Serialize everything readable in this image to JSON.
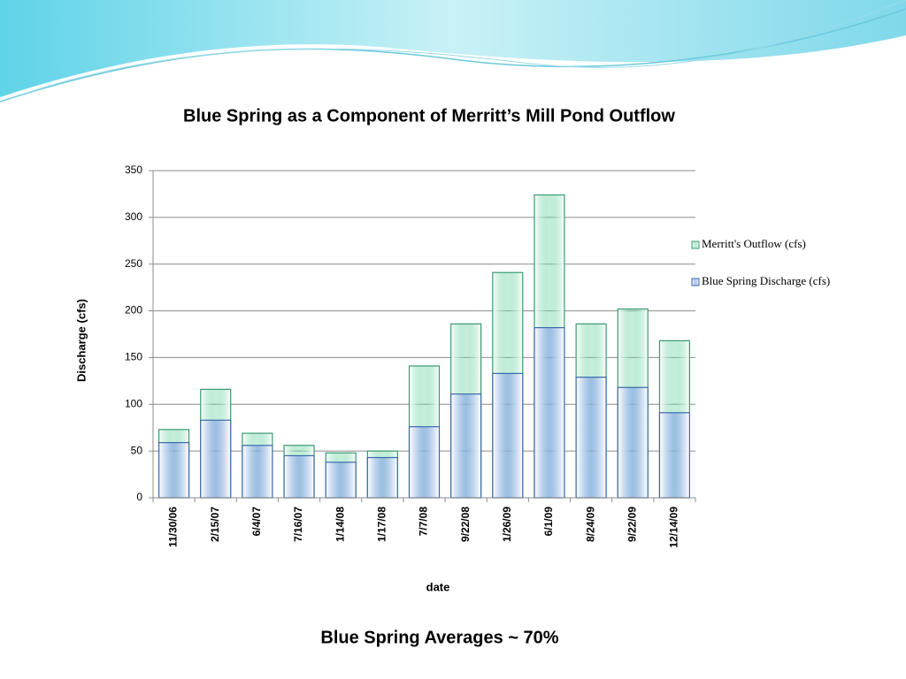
{
  "chart_data": {
    "type": "bar",
    "title": "Blue Spring as a Component of Merritt’s Mill Pond Outflow",
    "x_label": "date",
    "y_label": "Discharge (cfs)",
    "categories": [
      "11/30/06",
      "2/15/07",
      "6/4/07",
      "7/16/07",
      "1/14/08",
      "1/17/08",
      "7/7/08",
      "9/22/08",
      "1/26/09",
      "6/1/09",
      "8/24/09",
      "9/22/09",
      "12/14/09"
    ],
    "series": [
      {
        "name": "Merritt's Outflow (cfs)",
        "color": "#5ccf98",
        "values": [
          73,
          116,
          69,
          56,
          48,
          50,
          141,
          186,
          241,
          324,
          186,
          202,
          168
        ]
      },
      {
        "name": "Blue Spring Discharge (cfs)",
        "color": "#7f9fe6",
        "values": [
          59,
          83,
          56,
          45,
          38,
          43,
          76,
          111,
          133,
          182,
          129,
          118,
          91
        ]
      }
    ],
    "ylim": [
      0,
      350
    ],
    "yticks": [
      0,
      50,
      100,
      150,
      200,
      250,
      300,
      350
    ],
    "grid": true,
    "footer": "Blue Spring Averages ~ 70%"
  }
}
